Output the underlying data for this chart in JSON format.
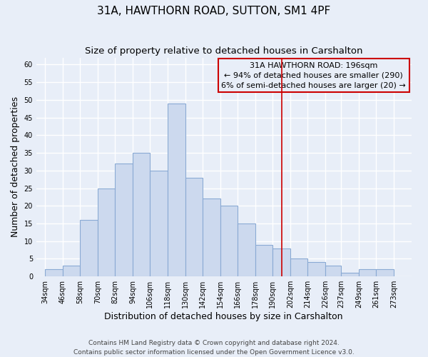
{
  "title": "31A, HAWTHORN ROAD, SUTTON, SM1 4PF",
  "subtitle": "Size of property relative to detached houses in Carshalton",
  "xlabel": "Distribution of detached houses by size in Carshalton",
  "ylabel": "Number of detached properties",
  "bar_color": "#ccd9ee",
  "bar_edge_color": "#8aaad4",
  "bar_left_edges": [
    34,
    46,
    58,
    70,
    82,
    94,
    106,
    118,
    130,
    142,
    154,
    166,
    178,
    190,
    202,
    214,
    226,
    237,
    249,
    261
  ],
  "bar_widths": [
    12,
    12,
    12,
    12,
    12,
    12,
    12,
    12,
    12,
    12,
    12,
    12,
    12,
    12,
    12,
    12,
    11,
    12,
    12,
    12
  ],
  "bar_heights": [
    2,
    3,
    16,
    25,
    32,
    35,
    30,
    49,
    28,
    22,
    20,
    15,
    9,
    8,
    5,
    4,
    3,
    1,
    2,
    2
  ],
  "tick_labels": [
    "34sqm",
    "46sqm",
    "58sqm",
    "70sqm",
    "82sqm",
    "94sqm",
    "106sqm",
    "118sqm",
    "130sqm",
    "142sqm",
    "154sqm",
    "166sqm",
    "178sqm",
    "190sqm",
    "202sqm",
    "214sqm",
    "226sqm",
    "237sqm",
    "249sqm",
    "261sqm",
    "273sqm"
  ],
  "tick_positions": [
    34,
    46,
    58,
    70,
    82,
    94,
    106,
    118,
    130,
    142,
    154,
    166,
    178,
    190,
    202,
    214,
    226,
    237,
    249,
    261,
    273
  ],
  "ylim": [
    0,
    62
  ],
  "xlim": [
    28,
    285
  ],
  "yticks": [
    0,
    5,
    10,
    15,
    20,
    25,
    30,
    35,
    40,
    45,
    50,
    55,
    60
  ],
  "vline_x": 196,
  "vline_color": "#cc0000",
  "annotation_title": "31A HAWTHORN ROAD: 196sqm",
  "annotation_line1": "← 94% of detached houses are smaller (290)",
  "annotation_line2": "6% of semi-detached houses are larger (20) →",
  "footnote1": "Contains HM Land Registry data © Crown copyright and database right 2024.",
  "footnote2": "Contains public sector information licensed under the Open Government Licence v3.0.",
  "background_color": "#e8eef8",
  "grid_color": "#ffffff",
  "title_fontsize": 11,
  "subtitle_fontsize": 9.5,
  "axis_label_fontsize": 9,
  "tick_fontsize": 7,
  "annotation_fontsize": 8,
  "footnote_fontsize": 6.5
}
